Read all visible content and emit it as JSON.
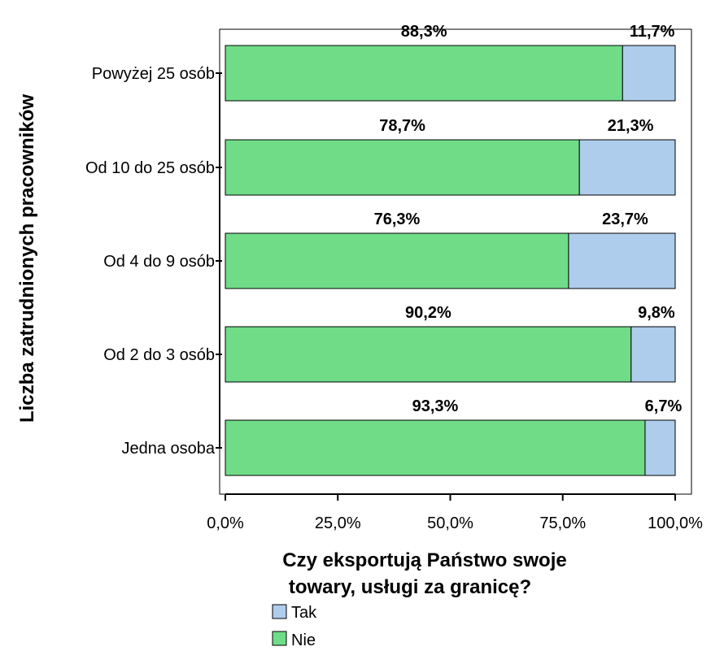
{
  "chart_data": {
    "type": "bar",
    "orientation": "horizontal",
    "stacked": true,
    "categories": [
      "Powyżej 25 osób",
      "Od 10 do 25 osób",
      "Od 4 do 9 osób",
      "Od 2 do 3 osób",
      "Jedna osoba"
    ],
    "series": [
      {
        "name": "Nie",
        "values": [
          88.3,
          78.7,
          76.3,
          90.2,
          93.3
        ],
        "labels": [
          "88,3%",
          "78,7%",
          "76,3%",
          "90,2%",
          "93,3%"
        ],
        "color": "#70dc88"
      },
      {
        "name": "Tak",
        "values": [
          11.7,
          21.3,
          23.7,
          9.8,
          6.7
        ],
        "labels": [
          "11,7%",
          "21,3%",
          "23,7%",
          "9,8%",
          "6,7%"
        ],
        "color": "#aecdec"
      }
    ],
    "xlim": [
      0,
      100
    ],
    "x_ticks": [
      "0,0%",
      "25,0%",
      "50,0%",
      "75,0%",
      "100,0%"
    ],
    "ylabel": "Liczba zatrudnionych pracowników",
    "legend_title_lines": [
      "Czy eksportują Państwo swoje",
      "towary, usługi za granicę?"
    ],
    "legend_entries": [
      "Tak",
      "Nie"
    ],
    "legend_placement": "bottom",
    "grid": false
  }
}
